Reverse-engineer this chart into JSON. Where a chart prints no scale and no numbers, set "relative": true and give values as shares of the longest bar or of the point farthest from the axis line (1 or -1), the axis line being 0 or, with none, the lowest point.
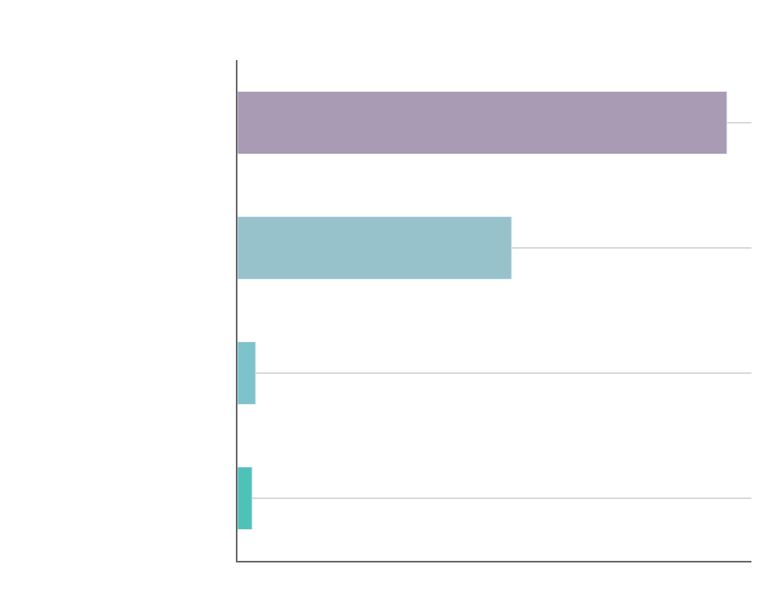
{
  "chart_data": {
    "type": "bar",
    "orientation": "horizontal",
    "relative": true,
    "categories": [
      null,
      null,
      null,
      null
    ],
    "values": [
      1,
      0.56,
      0.037,
      0.03
    ],
    "colors": [
      "#a99bb4",
      "#97c2cc",
      "#7cc3cb",
      "#4fc2b8"
    ],
    "grid": "y",
    "legend": false
  }
}
